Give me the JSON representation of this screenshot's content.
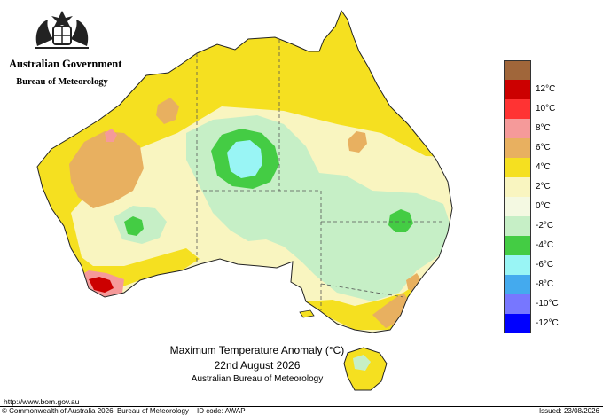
{
  "header": {
    "government": "Australian Government",
    "bureau": "Bureau of Meteorology"
  },
  "map": {
    "title": "Maximum Temperature Anomaly (°C)",
    "date": "22nd August 2026",
    "source": "Australian Bureau of Meteorology"
  },
  "legend": {
    "items": [
      {
        "label": "",
        "color": "#a0663a"
      },
      {
        "label": "12°C",
        "color": "#cc0000"
      },
      {
        "label": "10°C",
        "color": "#ff3333"
      },
      {
        "label": "8°C",
        "color": "#f59a9a"
      },
      {
        "label": "6°C",
        "color": "#e8b060"
      },
      {
        "label": "4°C",
        "color": "#f5e020"
      },
      {
        "label": "2°C",
        "color": "#f9f5c0"
      },
      {
        "label": "0°C",
        "color": "#f4f9e2"
      },
      {
        "label": "-2°C",
        "color": "#c6efc6"
      },
      {
        "label": "-4°C",
        "color": "#44cc44"
      },
      {
        "label": "-6°C",
        "color": "#99f5f5"
      },
      {
        "label": "-8°C",
        "color": "#44aaee"
      },
      {
        "label": "-10°C",
        "color": "#7777ff"
      },
      {
        "label": "-12°C",
        "color": "#0000ff"
      }
    ]
  },
  "footer": {
    "url": "http://www.bom.gov.au",
    "copyright": "© Commonwealth of Australia 2026, Bureau of Meteorology",
    "id_code": "ID code: AWAP",
    "issued": "Issued: 23/08/2026"
  },
  "colors": {
    "hot_brown": "#a0663a",
    "red": "#cc0000",
    "pink": "#f59a9a",
    "orange": "#e8b060",
    "yellow": "#f5e020",
    "pale_yellow": "#f9f5c0",
    "cream": "#f4f9e2",
    "light_green": "#c6efc6",
    "green": "#44cc44",
    "cyan": "#99f5f5"
  }
}
